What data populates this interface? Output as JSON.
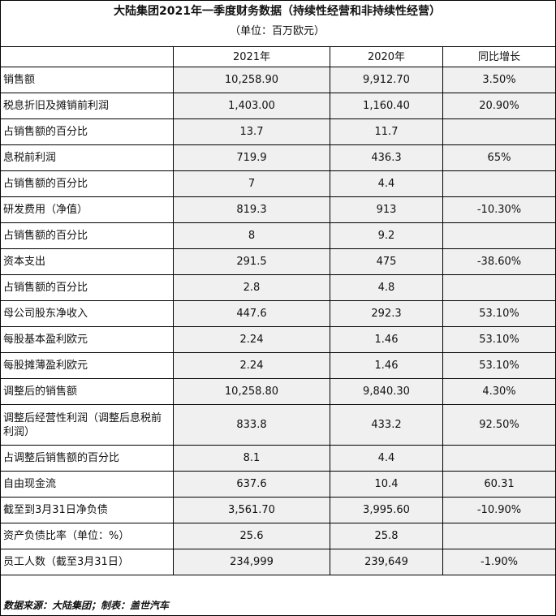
{
  "title": "大陆集团2021年一季度财务数据（持续性经营和非持续性经营）",
  "unit": "（单位：百万欧元）",
  "columns": [
    "",
    "2021年",
    "2020年",
    "同比增长"
  ],
  "rows": [
    {
      "label": "销售额",
      "y2021": "10,258.90",
      "y2020": "9,912.70",
      "growth": "3.50%"
    },
    {
      "label": "税息折旧及摊销前利润",
      "y2021": "1,403.00",
      "y2020": "1,160.40",
      "growth": "20.90%"
    },
    {
      "label": "占销售额的百分比",
      "y2021": "13.7",
      "y2020": "11.7",
      "growth": ""
    },
    {
      "label": "息税前利润",
      "y2021": "719.9",
      "y2020": "436.3",
      "growth": "65%"
    },
    {
      "label": "占销售额的百分比",
      "y2021": "7",
      "y2020": "4.4",
      "growth": ""
    },
    {
      "label": "研发费用（净值）",
      "y2021": "819.3",
      "y2020": "913",
      "growth": "-10.30%"
    },
    {
      "label": "占销售额的百分比",
      "y2021": "8",
      "y2020": "9.2",
      "growth": ""
    },
    {
      "label": "资本支出",
      "y2021": "291.5",
      "y2020": "475",
      "growth": "-38.60%"
    },
    {
      "label": "占销售额的百分比",
      "y2021": "2.8",
      "y2020": "4.8",
      "growth": ""
    },
    {
      "label": "母公司股东净收入",
      "y2021": "447.6",
      "y2020": "292.3",
      "growth": "53.10%"
    },
    {
      "label": "每股基本盈利欧元",
      "y2021": "2.24",
      "y2020": "1.46",
      "growth": "53.10%"
    },
    {
      "label": "每股摊薄盈利欧元",
      "y2021": "2.24",
      "y2020": "1.46",
      "growth": "53.10%"
    },
    {
      "label": "调整后的销售额",
      "y2021": "10,258.80",
      "y2020": "9,840.30",
      "growth": "4.30%"
    },
    {
      "label": "调整后经营性利润（调整后息税前利润）",
      "y2021": "833.8",
      "y2020": "433.2",
      "growth": "92.50%"
    },
    {
      "label": "占调整后销售额的百分比",
      "y2021": "8.1",
      "y2020": "4.4",
      "growth": ""
    },
    {
      "label": "自由现金流",
      "y2021": "637.6",
      "y2020": "10.4",
      "growth": "60.31"
    },
    {
      "label": "截至到3月31日净负债",
      "y2021": "3,561.70",
      "y2020": "3,995.60",
      "growth": "-10.90%"
    },
    {
      "label": "资产负债比率（单位：%）",
      "y2021": "25.6",
      "y2020": "25.8",
      "growth": ""
    },
    {
      "label": "员工人数（截至3月31日）",
      "y2021": "234,999",
      "y2020": "239,649",
      "growth": "-1.90%"
    }
  ],
  "source": "数据来源：大陆集团；制表：盖世汽车"
}
